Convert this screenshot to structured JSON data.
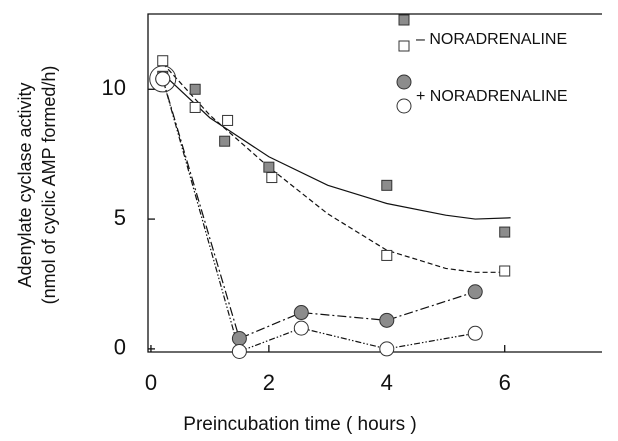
{
  "chart_data": {
    "type": "scatter",
    "ylabel": [
      "Adenylate cyclase activity",
      "(nmol of cyclic AMP formed/h)"
    ],
    "xlabel": "Preincubation time ( hours )",
    "xlim": [
      -0.05,
      7.65
    ],
    "xticks": [
      0,
      2,
      4,
      6
    ],
    "ylim": [
      -0.12,
      12.9
    ],
    "yticks": [
      0,
      5,
      10
    ],
    "series": [
      {
        "name": "– NORADRENALINE",
        "marker": "square",
        "sets": [
          {
            "color": "#8c8c8c",
            "x": [
              0.2,
              0.75,
              1.25,
              2.0,
              4.0,
              6.0
            ],
            "values": [
              10.5,
              10.0,
              8.0,
              7.0,
              6.3,
              4.5
            ],
            "curve": {
              "dash": "none",
              "x": [
                0.2,
                1,
                2,
                3,
                4,
                5,
                5.5,
                6.1
              ],
              "values": [
                10.6,
                8.9,
                7.4,
                6.3,
                5.6,
                5.15,
                5.0,
                5.05
              ]
            }
          },
          {
            "color": "#ffffff",
            "x": [
              0.2,
              0.75,
              1.3,
              2.05,
              4.0,
              6.0
            ],
            "values": [
              11.1,
              9.3,
              8.8,
              6.6,
              3.6,
              3.0
            ],
            "curve": {
              "dash": "5 3",
              "x": [
                0.2,
                1,
                2,
                3,
                4,
                5,
                5.5,
                6.0
              ],
              "values": [
                11.0,
                9.0,
                7.0,
                5.2,
                3.8,
                3.1,
                2.95,
                2.95
              ]
            }
          }
        ]
      },
      {
        "name": "+ NORADRENALINE",
        "marker": "circle",
        "sets": [
          {
            "color": "#8c8c8c",
            "x": [
              0.2,
              1.5,
              2.55,
              4.0,
              5.5
            ],
            "values": [
              10.4,
              0.4,
              1.4,
              1.1,
              2.2
            ],
            "dash": "9 3 2 3"
          },
          {
            "color": "#ffffff",
            "x": [
              0.2,
              1.5,
              2.55,
              4.0,
              5.5
            ],
            "values": [
              10.4,
              -0.1,
              0.8,
              0.0,
              0.6
            ],
            "dash": "6 2 1.5 2 1.5 2"
          }
        ]
      }
    ]
  }
}
